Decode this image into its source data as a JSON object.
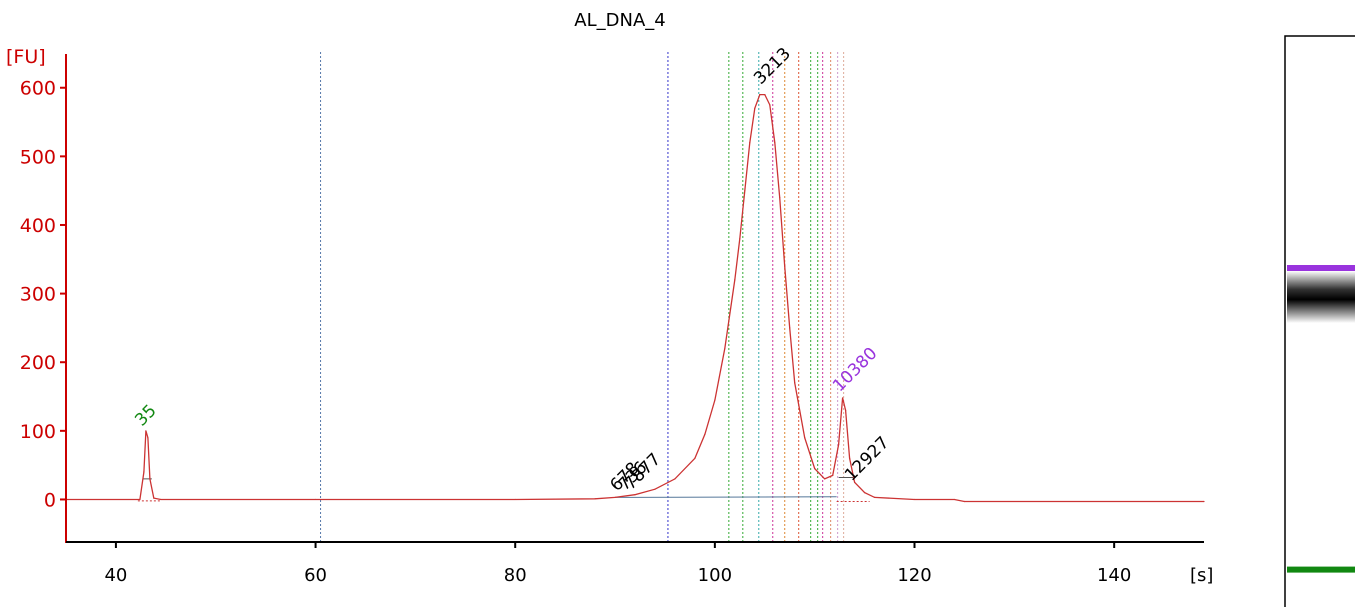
{
  "chart_data": {
    "type": "line",
    "title": "AL_DNA_4",
    "xlabel": "[s]",
    "ylabel": "[FU]",
    "xlim": [
      35,
      149
    ],
    "ylim": [
      -62,
      655
    ],
    "x_ticks": [
      40,
      60,
      80,
      100,
      120,
      140
    ],
    "y_ticks": [
      0,
      100,
      200,
      300,
      400,
      500,
      600
    ],
    "colors": {
      "axis_y": "#cc0000",
      "axis_x": "#000000",
      "trace": "#cc3333",
      "lower_marker": "#118811",
      "upper_marker": "#9933dd",
      "sizing_peak": "#000000"
    },
    "series": [
      {
        "x": [
          35,
          42.4,
          42.8,
          43.0,
          43.2,
          43.4,
          43.8,
          44.5,
          60,
          80,
          88,
          90,
          92,
          94,
          96,
          98,
          99,
          100,
          101,
          102,
          102.5,
          103,
          103.5,
          104,
          104.5,
          105,
          105.5,
          106,
          106.5,
          107,
          107.5,
          108,
          109,
          110,
          111,
          111.8,
          112.4,
          112.8,
          113.1,
          113.5,
          114,
          115,
          116,
          120,
          124,
          125,
          149
        ],
        "y": [
          0,
          0,
          40,
          100,
          90,
          30,
          2,
          0,
          0,
          0,
          1,
          3,
          7,
          15,
          30,
          60,
          95,
          145,
          220,
          320,
          380,
          450,
          520,
          570,
          590,
          590,
          575,
          520,
          440,
          340,
          250,
          170,
          90,
          45,
          30,
          35,
          80,
          148,
          130,
          60,
          25,
          10,
          3,
          0,
          0,
          -3,
          -3
        ]
      }
    ],
    "marker_lines": [
      {
        "x": 60.5,
        "color": "#5577aa"
      },
      {
        "x": 95.3,
        "color": "#3333cc"
      },
      {
        "x": 101.4,
        "color": "#33aa33"
      },
      {
        "x": 102.8,
        "color": "#33aa33"
      },
      {
        "x": 104.4,
        "color": "#33aaaa"
      },
      {
        "x": 105.8,
        "color": "#cc3399"
      },
      {
        "x": 107.0,
        "color": "#dd8833"
      },
      {
        "x": 108.4,
        "color": "#dd5533"
      },
      {
        "x": 109.6,
        "color": "#33aa33"
      },
      {
        "x": 110.3,
        "color": "#33aa33"
      },
      {
        "x": 110.8,
        "color": "#cc3399"
      },
      {
        "x": 111.6,
        "color": "#dd8866"
      },
      {
        "x": 112.3,
        "color": "#cc99cc"
      },
      {
        "x": 112.9,
        "color": "#ddaa99"
      }
    ],
    "peak_labels": [
      {
        "text": "35",
        "x": 43.0,
        "y": 100,
        "color": "#118811"
      },
      {
        "text": "678",
        "x": 90.6,
        "y": 5,
        "color": "#000000"
      },
      {
        "text": "736",
        "x": 91.4,
        "y": 6,
        "color": "#000000"
      },
      {
        "text": "7877",
        "x": 92.0,
        "y": 7,
        "color": "#000000"
      },
      {
        "text": "3213",
        "x": 105.0,
        "y": 598,
        "color": "#000000"
      },
      {
        "text": "10380",
        "x": 112.9,
        "y": 150,
        "color": "#9933dd"
      },
      {
        "text": "12927",
        "x": 114.1,
        "y": 20,
        "color": "#000000"
      }
    ],
    "gel_lane": {
      "bands": [
        {
          "name": "upper-marker",
          "color": "#9933dd",
          "y": 0.4
        },
        {
          "name": "main-band",
          "color": "#000000",
          "y": 0.45
        },
        {
          "name": "lower-marker",
          "color": "#118811",
          "y": 0.92
        }
      ]
    }
  }
}
